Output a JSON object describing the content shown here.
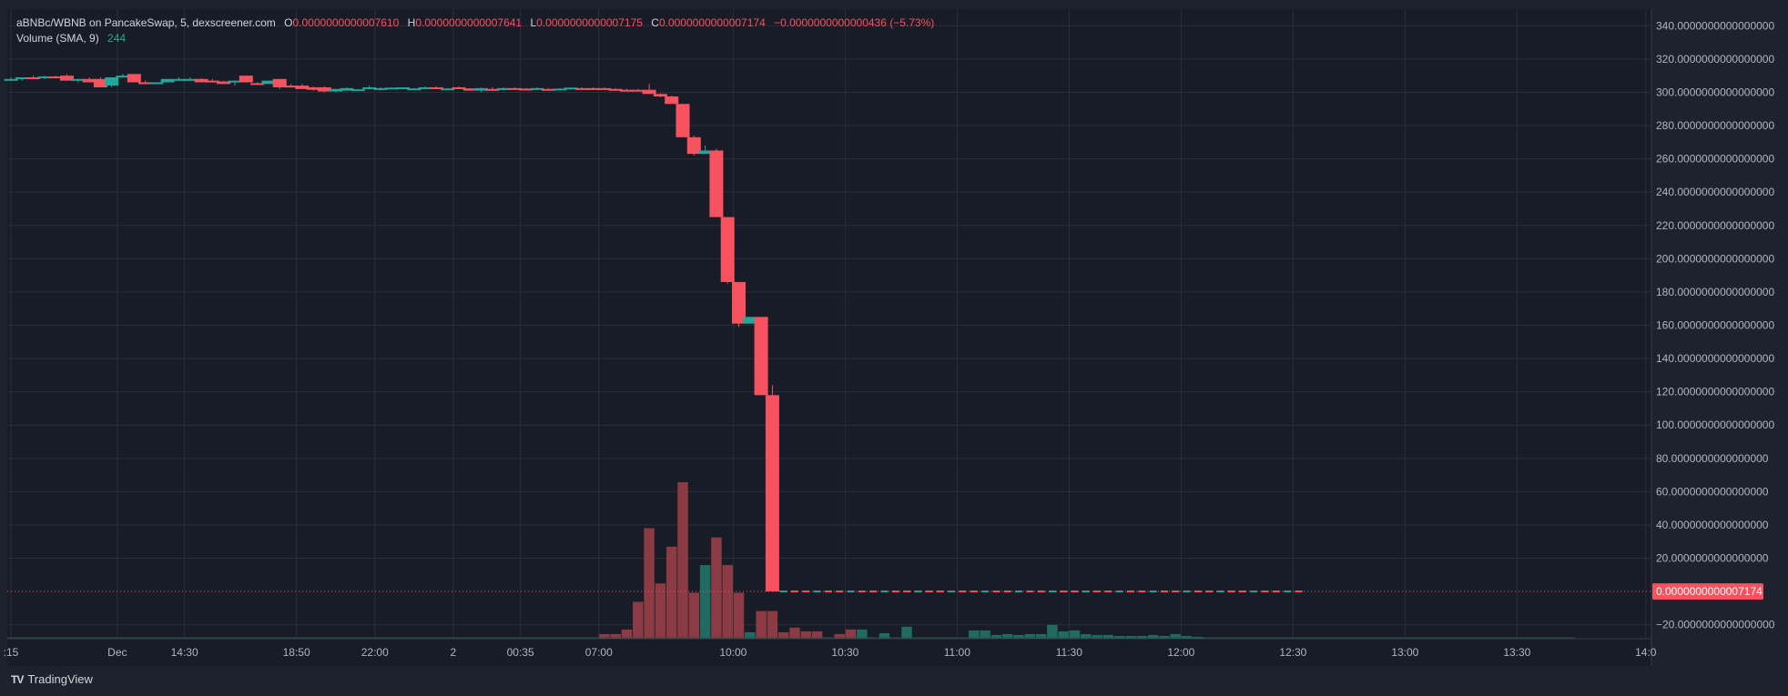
{
  "legend": {
    "pair": "aBNBc/WBNB on PancakeSwap, 5, dexscreener.com",
    "o_label": "O",
    "o_value": "0.0000000000007610",
    "h_label": "H",
    "h_value": "0.0000000000007641",
    "l_label": "L",
    "l_value": "0.0000000000007175",
    "c_label": "C",
    "c_value": "0.0000000000007174",
    "change": "−0.0000000000000436 (−5.73%)",
    "volume_label": "Volume (SMA, 9)",
    "volume_value": "244"
  },
  "branding": {
    "logo_text": "TV",
    "name": "TradingView"
  },
  "colors": {
    "bg": "#1e222d",
    "up": "#26a69a",
    "down": "#f7525f",
    "vol_up": "#1f6b61",
    "vol_down": "#8c3a43",
    "grid": "#2a2e39",
    "text": "#b2b5be"
  },
  "chart_data": {
    "type": "candlestick",
    "title": "aBNBc/WBNB on PancakeSwap, 5, dexscreener.com",
    "y_axis": {
      "ticks": [
        340,
        320,
        300,
        280,
        260,
        240,
        220,
        200,
        180,
        160,
        140,
        120,
        100,
        80,
        60,
        40,
        20,
        -20
      ],
      "tick_labels": [
        "340.0000000000000000",
        "320.0000000000000000",
        "300.0000000000000000",
        "280.0000000000000000",
        "260.0000000000000000",
        "240.0000000000000000",
        "220.0000000000000000",
        "200.0000000000000000",
        "180.0000000000000000",
        "160.0000000000000000",
        "140.0000000000000000",
        "120.0000000000000000",
        "100.0000000000000000",
        "80.0000000000000000",
        "60.0000000000000000",
        "40.0000000000000000",
        "20.0000000000000000",
        "−20.0000000000000000"
      ],
      "range": [
        -30,
        350
      ]
    },
    "last_price_label": "0.0000000000007174",
    "last_price_value": 0,
    "x_axis": {
      "labels": [
        ":15",
        "Dec",
        "14:30",
        "18:50",
        "22:00",
        "2",
        "00:35",
        "07:00",
        "10:00",
        "10:30",
        "11:00",
        "11:30",
        "12:00",
        "12:30",
        "13:00",
        "13:30",
        "14:0"
      ],
      "positions": [
        0,
        9.5,
        15.5,
        25.5,
        32.5,
        39.5,
        45.5,
        52.5,
        64.5,
        74.5,
        84.5,
        94.5,
        104.5,
        114.5,
        124.5,
        134.5,
        146
      ]
    },
    "candles": [
      {
        "i": 0,
        "o": 308,
        "h": 309,
        "l": 307,
        "c": 308
      },
      {
        "i": 1,
        "o": 308,
        "h": 309,
        "l": 307,
        "c": 309
      },
      {
        "i": 2,
        "o": 309,
        "h": 310,
        "l": 308,
        "c": 308.5
      },
      {
        "i": 3,
        "o": 309,
        "h": 310,
        "l": 308,
        "c": 309.5
      },
      {
        "i": 4,
        "o": 309.5,
        "h": 310,
        "l": 308.5,
        "c": 309
      },
      {
        "i": 5,
        "o": 310,
        "h": 311,
        "l": 307,
        "c": 307
      },
      {
        "i": 6,
        "o": 307,
        "h": 308,
        "l": 306,
        "c": 308
      },
      {
        "i": 7,
        "o": 308,
        "h": 309,
        "l": 306,
        "c": 306
      },
      {
        "i": 8,
        "o": 308,
        "h": 309,
        "l": 303,
        "c": 303
      },
      {
        "i": 9,
        "o": 304,
        "h": 309,
        "l": 303,
        "c": 309
      },
      {
        "i": 10,
        "o": 309,
        "h": 311,
        "l": 309,
        "c": 310
      },
      {
        "i": 11,
        "o": 311,
        "h": 311,
        "l": 306,
        "c": 306
      },
      {
        "i": 12,
        "o": 306,
        "h": 307,
        "l": 305,
        "c": 305.5
      },
      {
        "i": 13,
        "o": 305.5,
        "h": 306,
        "l": 305,
        "c": 306
      },
      {
        "i": 14,
        "o": 306,
        "h": 308,
        "l": 306,
        "c": 308
      },
      {
        "i": 15,
        "o": 308,
        "h": 309,
        "l": 307,
        "c": 308
      },
      {
        "i": 16,
        "o": 308,
        "h": 309,
        "l": 307,
        "c": 308
      },
      {
        "i": 17,
        "o": 308,
        "h": 308.5,
        "l": 306,
        "c": 306
      },
      {
        "i": 18,
        "o": 307,
        "h": 308,
        "l": 306,
        "c": 306.5
      },
      {
        "i": 19,
        "o": 306.5,
        "h": 307,
        "l": 305,
        "c": 305
      },
      {
        "i": 20,
        "o": 306,
        "h": 307,
        "l": 304,
        "c": 307
      },
      {
        "i": 21,
        "o": 310,
        "h": 310,
        "l": 306,
        "c": 306
      },
      {
        "i": 22,
        "o": 305.5,
        "h": 306,
        "l": 304.5,
        "c": 305
      },
      {
        "i": 23,
        "o": 305,
        "h": 307,
        "l": 305,
        "c": 307
      },
      {
        "i": 24,
        "o": 308,
        "h": 308,
        "l": 302,
        "c": 303
      },
      {
        "i": 25,
        "o": 304,
        "h": 305,
        "l": 303,
        "c": 303.5
      },
      {
        "i": 26,
        "o": 304,
        "h": 305,
        "l": 302,
        "c": 302
      },
      {
        "i": 27,
        "o": 303,
        "h": 303.5,
        "l": 301,
        "c": 301.5
      },
      {
        "i": 28,
        "o": 303,
        "h": 303.5,
        "l": 300,
        "c": 300.5
      },
      {
        "i": 29,
        "o": 300.5,
        "h": 302,
        "l": 300,
        "c": 302
      },
      {
        "i": 30,
        "o": 301,
        "h": 303,
        "l": 301,
        "c": 302.5
      },
      {
        "i": 31,
        "o": 301.5,
        "h": 302,
        "l": 301,
        "c": 301.8
      },
      {
        "i": 32,
        "o": 302,
        "h": 304,
        "l": 302,
        "c": 303
      },
      {
        "i": 33,
        "o": 302,
        "h": 303,
        "l": 301,
        "c": 302.5
      },
      {
        "i": 34,
        "o": 302.5,
        "h": 303,
        "l": 302,
        "c": 302.8
      },
      {
        "i": 35,
        "o": 302.5,
        "h": 303,
        "l": 302,
        "c": 303
      },
      {
        "i": 36,
        "o": 302,
        "h": 302.5,
        "l": 301.5,
        "c": 302.3
      },
      {
        "i": 37,
        "o": 302.5,
        "h": 303.5,
        "l": 302,
        "c": 303
      },
      {
        "i": 38,
        "o": 303,
        "h": 303.5,
        "l": 302.5,
        "c": 302.5
      },
      {
        "i": 39,
        "o": 302,
        "h": 302.5,
        "l": 301.5,
        "c": 302.3
      },
      {
        "i": 40,
        "o": 303,
        "h": 303.5,
        "l": 302,
        "c": 302.2
      },
      {
        "i": 41,
        "o": 302.3,
        "h": 302.5,
        "l": 301,
        "c": 301
      },
      {
        "i": 42,
        "o": 301,
        "h": 303,
        "l": 300,
        "c": 302.5
      },
      {
        "i": 43,
        "o": 302,
        "h": 303,
        "l": 301,
        "c": 301.5
      },
      {
        "i": 44,
        "o": 302,
        "h": 303,
        "l": 301,
        "c": 302.5
      },
      {
        "i": 45,
        "o": 302.5,
        "h": 303,
        "l": 302,
        "c": 302.2
      },
      {
        "i": 46,
        "o": 302.2,
        "h": 302.7,
        "l": 301.8,
        "c": 302
      },
      {
        "i": 47,
        "o": 302,
        "h": 303,
        "l": 301.5,
        "c": 302.5
      },
      {
        "i": 48,
        "o": 302,
        "h": 302.5,
        "l": 301.5,
        "c": 301.8
      },
      {
        "i": 49,
        "o": 301.8,
        "h": 302.5,
        "l": 301,
        "c": 302.2
      },
      {
        "i": 50,
        "o": 302.5,
        "h": 303,
        "l": 302,
        "c": 302.8
      },
      {
        "i": 51,
        "o": 302.5,
        "h": 303,
        "l": 302,
        "c": 302.2
      },
      {
        "i": 52,
        "o": 302.5,
        "h": 303,
        "l": 301.5,
        "c": 302
      },
      {
        "i": 53,
        "o": 302.5,
        "h": 303,
        "l": 301.5,
        "c": 301.8
      },
      {
        "i": 54,
        "o": 302,
        "h": 302.5,
        "l": 301,
        "c": 301.3
      },
      {
        "i": 55,
        "o": 301.5,
        "h": 302,
        "l": 301,
        "c": 301.2
      },
      {
        "i": 56,
        "o": 301.5,
        "h": 302,
        "l": 300.5,
        "c": 300.8
      },
      {
        "i": 57,
        "o": 301.5,
        "h": 305,
        "l": 299,
        "c": 299
      },
      {
        "i": 58,
        "o": 299,
        "h": 299.5,
        "l": 297,
        "c": 297.5
      },
      {
        "i": 59,
        "o": 297.5,
        "h": 298,
        "l": 293,
        "c": 293
      },
      {
        "i": 60,
        "o": 293,
        "h": 293,
        "l": 273,
        "c": 273
      },
      {
        "i": 61,
        "o": 273,
        "h": 274,
        "l": 262,
        "c": 263
      },
      {
        "i": 62,
        "o": 263,
        "h": 268,
        "l": 263,
        "c": 265
      },
      {
        "i": 63,
        "o": 265,
        "h": 266,
        "l": 225,
        "c": 225
      },
      {
        "i": 64,
        "o": 225,
        "h": 225,
        "l": 185,
        "c": 186
      },
      {
        "i": 65,
        "o": 186,
        "h": 186,
        "l": 159,
        "c": 161
      },
      {
        "i": 66,
        "o": 161,
        "h": 165,
        "l": 161,
        "c": 165
      },
      {
        "i": 67,
        "o": 165,
        "h": 165,
        "l": 118,
        "c": 118
      },
      {
        "i": 68,
        "o": 118,
        "h": 124,
        "l": 0,
        "c": 0
      }
    ],
    "volume": {
      "sma_period": 9,
      "sma_value": 244,
      "bars": [
        {
          "i": 53,
          "v": 0.5,
          "dir": "down"
        },
        {
          "i": 54,
          "v": 0.5,
          "dir": "down"
        },
        {
          "i": 55,
          "v": 1,
          "dir": "down"
        },
        {
          "i": 56,
          "v": 4,
          "dir": "down"
        },
        {
          "i": 57,
          "v": 12,
          "dir": "down"
        },
        {
          "i": 58,
          "v": 6,
          "dir": "down"
        },
        {
          "i": 59,
          "v": 10,
          "dir": "down"
        },
        {
          "i": 60,
          "v": 17,
          "dir": "down"
        },
        {
          "i": 61,
          "v": 5,
          "dir": "down"
        },
        {
          "i": 62,
          "v": 8,
          "dir": "up"
        },
        {
          "i": 63,
          "v": 11,
          "dir": "down"
        },
        {
          "i": 64,
          "v": 8,
          "dir": "down"
        },
        {
          "i": 65,
          "v": 5,
          "dir": "down"
        },
        {
          "i": 66,
          "v": 0.7,
          "dir": "up"
        },
        {
          "i": 67,
          "v": 3,
          "dir": "down"
        },
        {
          "i": 68,
          "v": 3,
          "dir": "down"
        },
        {
          "i": 69,
          "v": 0.7,
          "dir": "down"
        },
        {
          "i": 70,
          "v": 1.2,
          "dir": "down"
        },
        {
          "i": 71,
          "v": 0.8,
          "dir": "down"
        },
        {
          "i": 72,
          "v": 0.8,
          "dir": "down"
        },
        {
          "i": 74,
          "v": 0.5,
          "dir": "down"
        },
        {
          "i": 75,
          "v": 1.0,
          "dir": "down"
        },
        {
          "i": 76,
          "v": 1.0,
          "dir": "up"
        },
        {
          "i": 78,
          "v": 0.6,
          "dir": "up"
        },
        {
          "i": 80,
          "v": 1.3,
          "dir": "up"
        },
        {
          "i": 86,
          "v": 0.9,
          "dir": "up"
        },
        {
          "i": 87,
          "v": 0.9,
          "dir": "up"
        },
        {
          "i": 88,
          "v": 0.4,
          "dir": "up"
        },
        {
          "i": 89,
          "v": 0.5,
          "dir": "up"
        },
        {
          "i": 90,
          "v": 0.4,
          "dir": "up"
        },
        {
          "i": 91,
          "v": 0.5,
          "dir": "up"
        },
        {
          "i": 92,
          "v": 0.5,
          "dir": "up"
        },
        {
          "i": 93,
          "v": 1.5,
          "dir": "up"
        },
        {
          "i": 94,
          "v": 0.8,
          "dir": "up"
        },
        {
          "i": 95,
          "v": 0.9,
          "dir": "up"
        },
        {
          "i": 96,
          "v": 0.5,
          "dir": "up"
        },
        {
          "i": 97,
          "v": 0.4,
          "dir": "up"
        },
        {
          "i": 98,
          "v": 0.4,
          "dir": "up"
        },
        {
          "i": 99,
          "v": 0.3,
          "dir": "up"
        },
        {
          "i": 100,
          "v": 0.3,
          "dir": "up"
        },
        {
          "i": 101,
          "v": 0.3,
          "dir": "up"
        },
        {
          "i": 102,
          "v": 0.4,
          "dir": "up"
        },
        {
          "i": 103,
          "v": 0.3,
          "dir": "up"
        },
        {
          "i": 104,
          "v": 0.5,
          "dir": "up"
        },
        {
          "i": 105,
          "v": 0.3,
          "dir": "up"
        },
        {
          "i": 106,
          "v": 0.2,
          "dir": "up"
        }
      ],
      "max": 17
    }
  }
}
